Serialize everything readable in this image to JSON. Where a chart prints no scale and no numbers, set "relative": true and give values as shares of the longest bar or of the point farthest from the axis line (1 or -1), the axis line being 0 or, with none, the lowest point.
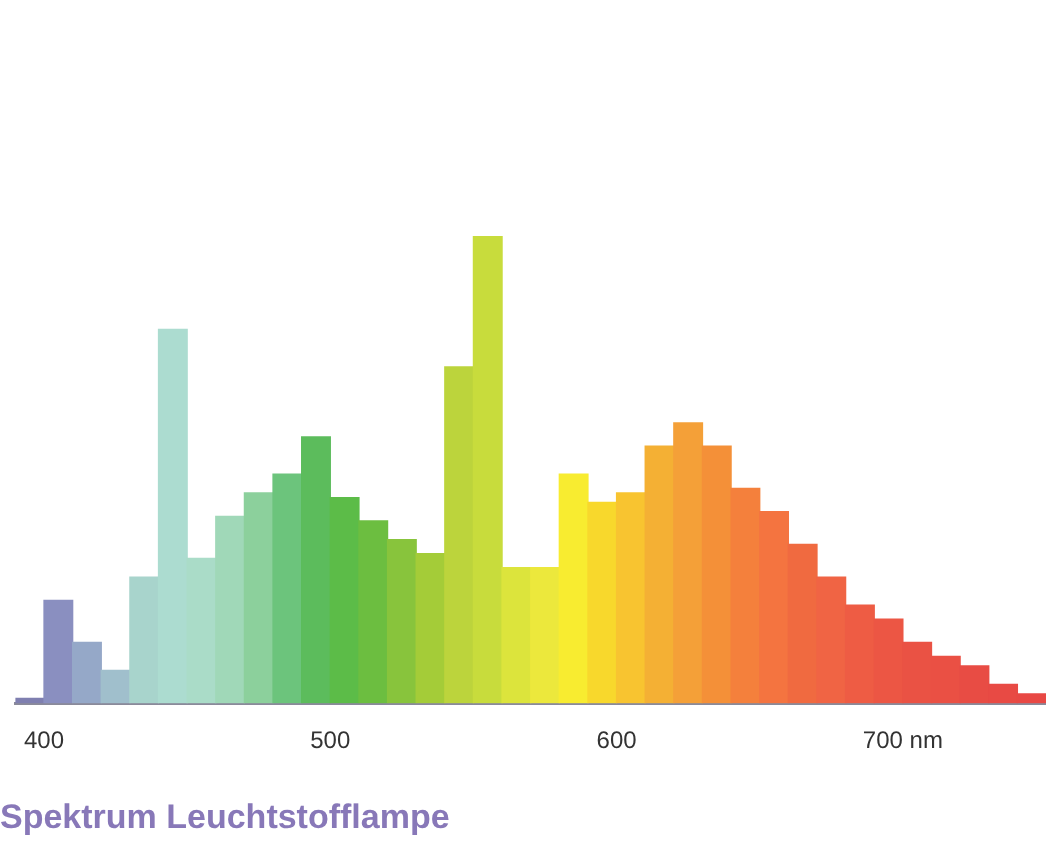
{
  "chart_data": {
    "type": "bar",
    "title": "Spektrum Leuchtstofflampe",
    "relative": true,
    "x": [
      395,
      405,
      415,
      425,
      435,
      445,
      455,
      465,
      475,
      485,
      495,
      505,
      515,
      525,
      535,
      545,
      555,
      565,
      575,
      585,
      595,
      605,
      615,
      625,
      635,
      645,
      655,
      665,
      675,
      685,
      695,
      705,
      715,
      725,
      735,
      745
    ],
    "values": [
      0.01,
      0.22,
      0.13,
      0.07,
      0.27,
      0.8,
      0.31,
      0.4,
      0.45,
      0.49,
      0.57,
      0.44,
      0.39,
      0.35,
      0.32,
      0.72,
      1,
      0.29,
      0.29,
      0.49,
      0.43,
      0.45,
      0.55,
      0.6,
      0.55,
      0.46,
      0.41,
      0.34,
      0.27,
      0.21,
      0.18,
      0.13,
      0.1,
      0.08,
      0.04,
      0.02
    ],
    "colors": [
      "#7f7fb0",
      "#8a8fc0",
      "#95a8c8",
      "#a0bfcc",
      "#a8d4cc",
      "#acdcd0",
      "#aadcc8",
      "#a0d8b8",
      "#8cd09c",
      "#6cc47c",
      "#5cbc5c",
      "#5cbc48",
      "#6cbe40",
      "#88c43c",
      "#a4cc38",
      "#bcd43c",
      "#c8dc3c",
      "#dce43c",
      "#ece83c",
      "#f8ec30",
      "#f8d82c",
      "#f8c430",
      "#f4b034",
      "#f4a038",
      "#f49038",
      "#f4803c",
      "#f47440",
      "#f06a40",
      "#f06444",
      "#ee5c44",
      "#ec5644",
      "#ea5244",
      "#ea5044",
      "#e84c44",
      "#e84a44",
      "#e84844"
    ],
    "xlim": [
      390,
      750
    ],
    "xticks": [
      400,
      500,
      600,
      {
        "value": 700,
        "label": "700 nm"
      }
    ]
  }
}
